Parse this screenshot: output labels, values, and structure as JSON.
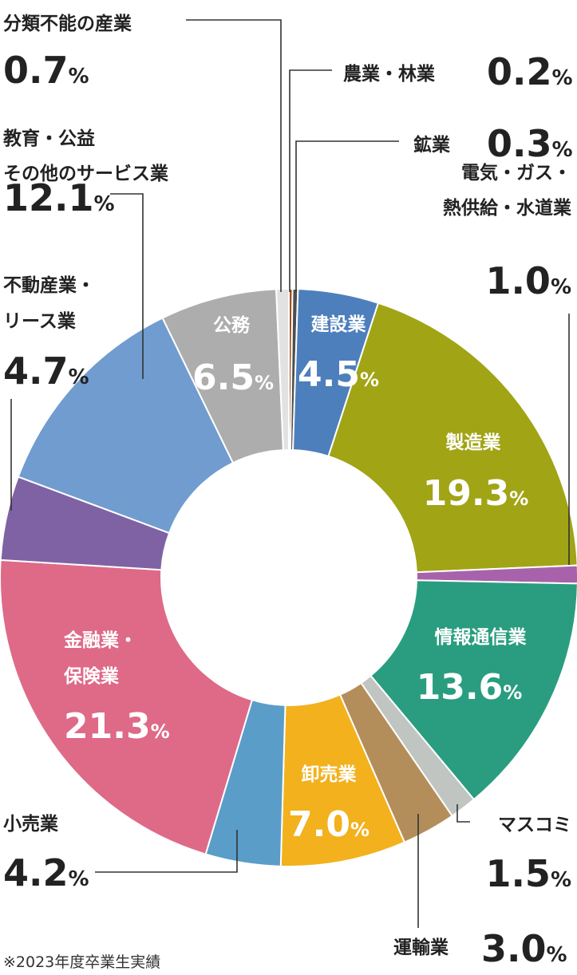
{
  "chart_data": {
    "type": "pie",
    "donut": true,
    "start_angle_deg": 0,
    "direction": "clockwise",
    "slices": [
      {
        "label": "農業・林業",
        "value": 0.2,
        "color": "#a0501e"
      },
      {
        "label": "鉱業",
        "value": 0.3,
        "color": "#4e4e4e"
      },
      {
        "label": "建設業",
        "value": 4.5,
        "color": "#4d7fbc"
      },
      {
        "label": "製造業",
        "value": 19.3,
        "color": "#a1a415"
      },
      {
        "label": "電気・ガス・熱供給・水道業",
        "value": 1.0,
        "color": "#a862ab"
      },
      {
        "label": "情報通信業",
        "value": 13.6,
        "color": "#2a9d80"
      },
      {
        "label": "マスコミ",
        "value": 1.5,
        "color": "#c1c5c2"
      },
      {
        "label": "運輸業",
        "value": 3.0,
        "color": "#b48e5a"
      },
      {
        "label": "卸売業",
        "value": 7.0,
        "color": "#f2b11d"
      },
      {
        "label": "小売業",
        "value": 4.2,
        "color": "#5a9dc8"
      },
      {
        "label": "金融業・保険業",
        "value": 21.3,
        "color": "#de6a88"
      },
      {
        "label": "不動産業・リース業",
        "value": 4.7,
        "color": "#7f62a4"
      },
      {
        "label": "教育・公益その他のサービス業",
        "value": 12.1,
        "color": "#709ccf"
      },
      {
        "label": "公務",
        "value": 6.5,
        "color": "#adadad"
      },
      {
        "label": "分類不能の産業",
        "value": 0.7,
        "color": "#e2e2e2"
      }
    ],
    "value_unit": "%",
    "labels": {
      "agri_name": "農業・林業",
      "mining_name": "鉱業",
      "util_name_1": "電気・ガス・",
      "util_name_2": "熱供給・水道業",
      "unclass_name": "分類不能の産業",
      "edu_name_1": "教育・公益",
      "edu_name_2": "その他のサービス業",
      "realestate_name_1": "不動産業・",
      "realestate_name_2": "リース業",
      "retail_name": "小売業",
      "transport_name": "運輸業",
      "media_name": "マスコミ",
      "construction_name": "建設業",
      "manufacturing_name": "製造業",
      "it_name": "情報通信業",
      "wholesale_name": "卸売業",
      "finance_name_1": "金融業・",
      "finance_name_2": "保険業",
      "public_name": "公務"
    },
    "value_text": {
      "agri": "0.2",
      "mining": "0.3",
      "util": "1.0",
      "unclass": "0.7",
      "edu": "12.1",
      "realestate": "4.7",
      "retail": "4.2",
      "transport": "3.0",
      "media": "1.5",
      "construction": "4.5",
      "manufacturing": "19.3",
      "it": "13.6",
      "wholesale": "7.0",
      "finance": "21.3",
      "public": "6.5"
    },
    "note": "※2023年度卒業生実績"
  }
}
